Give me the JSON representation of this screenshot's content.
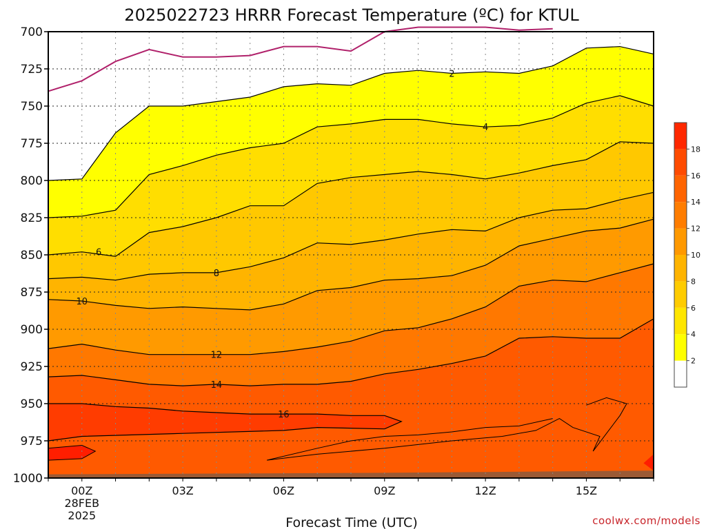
{
  "chart_data": {
    "type": "heatmap",
    "title": "2025022723 HRRR Forecast Temperature (ºC) for KTUL",
    "xlabel": "Forecast Time (UTC)",
    "ylabel": "",
    "credit": "coolwx.com/models",
    "x_hours": [
      23,
      24,
      25,
      26,
      27,
      28,
      29,
      30,
      31,
      32,
      33,
      34,
      35,
      36,
      37,
      38,
      39,
      40,
      41
    ],
    "x_ticks": [
      {
        "hour": 24,
        "label": "00Z",
        "sub": [
          "28FEB",
          "2025"
        ]
      },
      {
        "hour": 27,
        "label": "03Z",
        "sub": []
      },
      {
        "hour": 30,
        "label": "06Z",
        "sub": []
      },
      {
        "hour": 33,
        "label": "09Z",
        "sub": []
      },
      {
        "hour": 36,
        "label": "12Z",
        "sub": []
      },
      {
        "hour": 39,
        "label": "15Z",
        "sub": []
      }
    ],
    "y_ticks": [
      700,
      725,
      750,
      775,
      800,
      825,
      850,
      875,
      900,
      925,
      950,
      975,
      1000
    ],
    "ylim": [
      1000,
      700
    ],
    "colorbar": {
      "ticks": [
        2,
        4,
        6,
        8,
        10,
        12,
        14,
        16,
        18
      ],
      "colors": [
        "#ffffff",
        "#ffff00",
        "#ffe600",
        "#ffcc00",
        "#ffb400",
        "#ff9900",
        "#ff7d00",
        "#ff6400",
        "#ff4b00",
        "#ff2800"
      ]
    },
    "fill_levels": [
      2,
      4,
      6,
      8,
      10,
      12,
      14,
      16,
      18
    ],
    "fill_colors": [
      "#ffff00",
      "#ffde00",
      "#ffc800",
      "#ffb400",
      "#ff9a00",
      "#ff7800",
      "#ff5a00",
      "#ff3c00",
      "#ff1e00"
    ],
    "zero_isotherm": [
      [
        23,
        740
      ],
      [
        24,
        733
      ],
      [
        25,
        720
      ],
      [
        26,
        712
      ],
      [
        27,
        717
      ],
      [
        28,
        717
      ],
      [
        29,
        716
      ],
      [
        30,
        710
      ],
      [
        31,
        710
      ],
      [
        32,
        713
      ],
      [
        33,
        700
      ],
      [
        34,
        697
      ],
      [
        35,
        697
      ],
      [
        36,
        697
      ],
      [
        37,
        699
      ],
      [
        38,
        698
      ]
    ],
    "isotherms": [
      {
        "value": 2,
        "label": "2",
        "label_hour": 35,
        "points": [
          [
            23,
            800
          ],
          [
            24,
            799
          ],
          [
            25,
            768
          ],
          [
            26,
            750
          ],
          [
            27,
            750
          ],
          [
            28,
            747
          ],
          [
            29,
            744
          ],
          [
            30,
            737
          ],
          [
            31,
            735
          ],
          [
            32,
            736
          ],
          [
            33,
            728
          ],
          [
            34,
            726
          ],
          [
            35,
            728
          ],
          [
            36,
            727
          ],
          [
            37,
            728
          ],
          [
            38,
            723
          ],
          [
            39,
            711
          ],
          [
            40,
            710
          ],
          [
            41,
            715
          ]
        ]
      },
      {
        "value": 4,
        "label": "4",
        "label_hour": 36,
        "points": [
          [
            23,
            825
          ],
          [
            24,
            824
          ],
          [
            25,
            820
          ],
          [
            26,
            796
          ],
          [
            27,
            790
          ],
          [
            28,
            783
          ],
          [
            29,
            778
          ],
          [
            30,
            775
          ],
          [
            31,
            764
          ],
          [
            32,
            762
          ],
          [
            33,
            759
          ],
          [
            34,
            759
          ],
          [
            35,
            762
          ],
          [
            36,
            764
          ],
          [
            37,
            763
          ],
          [
            38,
            758
          ],
          [
            39,
            748
          ],
          [
            40,
            743
          ],
          [
            41,
            750
          ]
        ]
      },
      {
        "value": 6,
        "label": "6",
        "label_hour": 24.5,
        "points": [
          [
            23,
            850
          ],
          [
            24,
            848
          ],
          [
            25,
            851
          ],
          [
            26,
            835
          ],
          [
            27,
            831
          ],
          [
            28,
            825
          ],
          [
            29,
            817
          ],
          [
            30,
            817
          ],
          [
            31,
            802
          ],
          [
            32,
            798
          ],
          [
            33,
            796
          ],
          [
            34,
            794
          ],
          [
            35,
            796
          ],
          [
            36,
            799
          ],
          [
            37,
            795
          ],
          [
            38,
            790
          ],
          [
            39,
            786
          ],
          [
            40,
            774
          ],
          [
            41,
            775
          ]
        ]
      },
      {
        "value": 8,
        "label": "8",
        "label_hour": 28,
        "points": [
          [
            23,
            866
          ],
          [
            24,
            865
          ],
          [
            25,
            867
          ],
          [
            26,
            863
          ],
          [
            27,
            862
          ],
          [
            28,
            862
          ],
          [
            29,
            858
          ],
          [
            30,
            852
          ],
          [
            31,
            842
          ],
          [
            32,
            843
          ],
          [
            33,
            840
          ],
          [
            34,
            836
          ],
          [
            35,
            833
          ],
          [
            36,
            834
          ],
          [
            37,
            825
          ],
          [
            38,
            820
          ],
          [
            39,
            819
          ],
          [
            40,
            813
          ],
          [
            41,
            808
          ]
        ]
      },
      {
        "value": 10,
        "label": "10",
        "label_hour": 24,
        "points": [
          [
            23,
            880
          ],
          [
            24,
            881
          ],
          [
            25,
            884
          ],
          [
            26,
            886
          ],
          [
            27,
            885
          ],
          [
            28,
            886
          ],
          [
            29,
            887
          ],
          [
            30,
            883
          ],
          [
            31,
            874
          ],
          [
            32,
            872
          ],
          [
            33,
            867
          ],
          [
            34,
            866
          ],
          [
            35,
            864
          ],
          [
            36,
            857
          ],
          [
            37,
            844
          ],
          [
            38,
            839
          ],
          [
            39,
            834
          ],
          [
            40,
            832
          ],
          [
            41,
            826
          ]
        ]
      },
      {
        "value": 12,
        "label": "12",
        "label_hour": 28,
        "points": [
          [
            23,
            913
          ],
          [
            24,
            910
          ],
          [
            25,
            914
          ],
          [
            26,
            917
          ],
          [
            27,
            917
          ],
          [
            28,
            917
          ],
          [
            29,
            917
          ],
          [
            30,
            915
          ],
          [
            31,
            912
          ],
          [
            32,
            908
          ],
          [
            33,
            901
          ],
          [
            34,
            899
          ],
          [
            35,
            893
          ],
          [
            36,
            885
          ],
          [
            37,
            871
          ],
          [
            38,
            867
          ],
          [
            39,
            868
          ],
          [
            40,
            862
          ],
          [
            41,
            856
          ]
        ]
      },
      {
        "value": 14,
        "label": "14",
        "label_hour": 28,
        "points": [
          [
            23,
            932
          ],
          [
            24,
            931
          ],
          [
            25,
            934
          ],
          [
            26,
            937
          ],
          [
            27,
            938
          ],
          [
            28,
            937
          ],
          [
            29,
            938
          ],
          [
            30,
            937
          ],
          [
            31,
            937
          ],
          [
            32,
            935
          ],
          [
            33,
            930
          ],
          [
            34,
            927
          ],
          [
            35,
            923
          ],
          [
            36,
            918
          ],
          [
            37,
            906
          ],
          [
            38,
            905
          ],
          [
            39,
            906
          ],
          [
            40,
            906
          ],
          [
            41,
            893
          ]
        ]
      },
      {
        "value": 16,
        "label": "16",
        "label_hour": 30,
        "points": [
          [
            23,
            950
          ],
          [
            24,
            950
          ],
          [
            25,
            952
          ],
          [
            26,
            953
          ],
          [
            27,
            955
          ],
          [
            28,
            956
          ],
          [
            29,
            957
          ],
          [
            30,
            957
          ],
          [
            31,
            957
          ],
          [
            32,
            958
          ],
          [
            33,
            958
          ],
          [
            33.5,
            962
          ],
          [
            33,
            967
          ],
          [
            31,
            966
          ],
          [
            30,
            968
          ],
          [
            27,
            970
          ],
          [
            24,
            972
          ],
          [
            23,
            975
          ]
        ]
      }
    ],
    "warm_pocket": [
      [
        23,
        980
      ],
      [
        24,
        978
      ],
      [
        24.4,
        982
      ],
      [
        24,
        987
      ],
      [
        23,
        988
      ]
    ],
    "cool_lobes": [
      [
        [
          39,
          951
        ],
        [
          39.6,
          946
        ],
        [
          40.2,
          950
        ],
        [
          40,
          958
        ],
        [
          39.6,
          970
        ],
        [
          39.2,
          982
        ],
        [
          39.4,
          972
        ],
        [
          38.6,
          966
        ],
        [
          38.2,
          960
        ],
        [
          37.5,
          968
        ],
        [
          36.5,
          972
        ],
        [
          35,
          975
        ],
        [
          33,
          980
        ],
        [
          31,
          984
        ],
        [
          29.5,
          988
        ],
        [
          31,
          980
        ],
        [
          32,
          975
        ],
        [
          33,
          972
        ],
        [
          34,
          971
        ],
        [
          35,
          969
        ],
        [
          36,
          966
        ],
        [
          37,
          965
        ],
        [
          38,
          960
        ]
      ]
    ],
    "ground_pressure": 997
  }
}
